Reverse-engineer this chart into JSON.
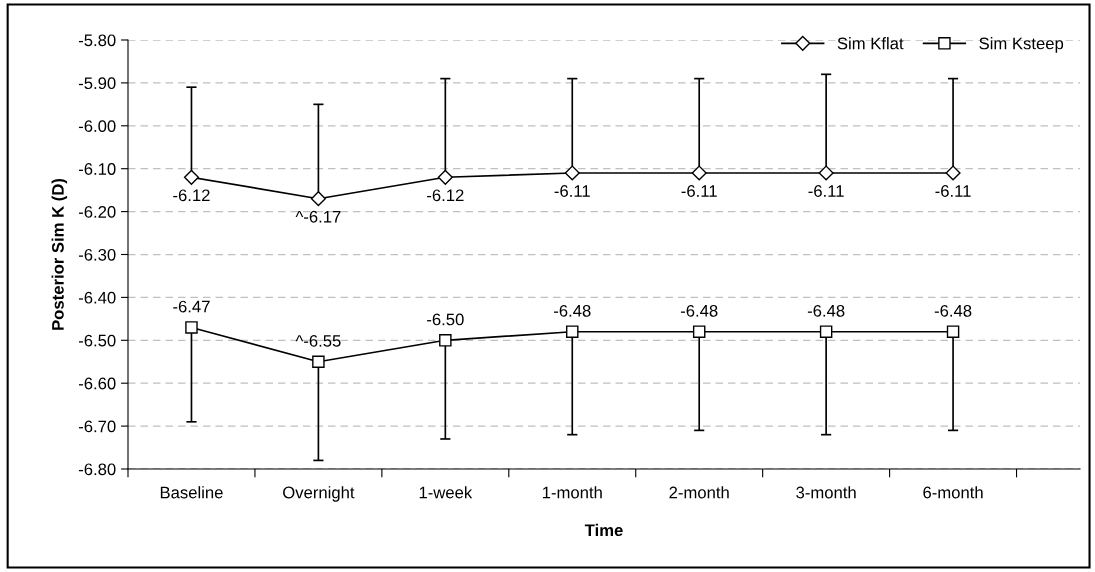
{
  "chart_data": {
    "type": "line",
    "xlabel": "Time",
    "ylabel": "Posterior Sim K (D)",
    "categories": [
      "Baseline",
      "Overnight",
      "1-week",
      "1-month",
      "2-month",
      "3-month",
      "6-month"
    ],
    "series": [
      {
        "name": "Sim Kflat",
        "color": "#000000",
        "marker": "diamond",
        "values": [
          -6.12,
          -6.17,
          -6.12,
          -6.11,
          -6.11,
          -6.11,
          -6.11
        ],
        "errors": [
          [
            -6.12,
            -5.91
          ],
          [
            -6.17,
            -5.95
          ],
          [
            -6.12,
            -5.89
          ],
          [
            -6.11,
            -5.89
          ],
          [
            -6.11,
            -5.89
          ],
          [
            -6.11,
            -5.88
          ],
          [
            -6.11,
            -5.89
          ]
        ],
        "value_labels": [
          "-6.12",
          "^-6.17",
          "-6.12",
          "-6.11",
          "-6.11",
          "-6.11",
          "-6.11"
        ]
      },
      {
        "name": "Sim Ksteep",
        "color": "#000000",
        "marker": "square",
        "values": [
          -6.47,
          -6.55,
          -6.5,
          -6.48,
          -6.48,
          -6.48,
          -6.48
        ],
        "errors": [
          [
            -6.69,
            -6.47
          ],
          [
            -6.78,
            -6.55
          ],
          [
            -6.73,
            -6.5
          ],
          [
            -6.72,
            -6.48
          ],
          [
            -6.71,
            -6.48
          ],
          [
            -6.72,
            -6.48
          ],
          [
            -6.71,
            -6.48
          ]
        ],
        "value_labels": [
          "-6.47",
          "^-6.55",
          "-6.50",
          "-6.48",
          "-6.48",
          "-6.48",
          "-6.48"
        ]
      }
    ],
    "ylim": [
      -6.8,
      -5.8
    ],
    "yticks": [
      {
        "value": -6.8,
        "label": "-6.80"
      },
      {
        "value": -6.7,
        "label": "-6.70"
      },
      {
        "value": -6.6,
        "label": "-6.60"
      },
      {
        "value": -6.5,
        "label": "-6.50"
      },
      {
        "value": -6.4,
        "label": "-6.40"
      },
      {
        "value": -6.3,
        "label": "-6.30"
      },
      {
        "value": -6.2,
        "label": "-6.20"
      },
      {
        "value": -6.1,
        "label": "-6.10"
      },
      {
        "value": -6.0,
        "label": "-6.00"
      },
      {
        "value": -5.9,
        "label": "-5.90"
      },
      {
        "value": -5.8,
        "label": "-5.80"
      }
    ],
    "grid": "y",
    "legend": "top right",
    "line_style": "solid"
  }
}
